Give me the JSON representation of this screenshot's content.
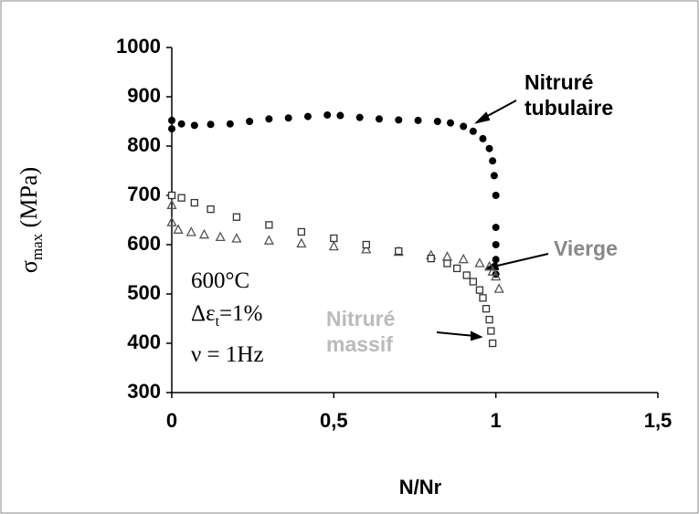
{
  "chart_data": {
    "type": "scatter",
    "xlabel": "N/Nr",
    "ylabel": {
      "symbol": "σ",
      "subscript": "max",
      "unit": " (MPa)"
    },
    "xlim": [
      0,
      1.5
    ],
    "xticks": [
      0,
      {
        "value": 0.5,
        "label": "0,5"
      },
      1,
      {
        "value": 1.5,
        "label": "1,5"
      }
    ],
    "ylim": [
      300,
      1000
    ],
    "yticks": [
      300,
      400,
      500,
      600,
      700,
      800,
      900,
      1000
    ],
    "annotations": {
      "temperature": "600°C",
      "strain_symbol": "Δε",
      "strain_sub": "t",
      "strain_value": "=1%",
      "frequency": "ν = 1Hz"
    },
    "series": [
      {
        "name": "Nitruré tubulaire",
        "color": "#000000",
        "marker": "circle",
        "x": [
          0,
          0,
          0.03,
          0.07,
          0.12,
          0.18,
          0.24,
          0.3,
          0.36,
          0.42,
          0.48,
          0.52,
          0.58,
          0.64,
          0.7,
          0.76,
          0.82,
          0.86,
          0.9,
          0.93,
          0.96,
          0.98,
          0.99,
          0.995,
          1,
          1,
          1,
          1,
          1
        ],
        "values": [
          835,
          852,
          845,
          842,
          844,
          845,
          850,
          855,
          857,
          860,
          863,
          862,
          858,
          855,
          853,
          852,
          850,
          847,
          840,
          830,
          815,
          795,
          770,
          740,
          700,
          635,
          600,
          570,
          540
        ]
      },
      {
        "name": "Vierge",
        "color": "#555555",
        "label_color": "#888888",
        "marker": "triangle",
        "x": [
          0,
          0,
          0.02,
          0.06,
          0.1,
          0.15,
          0.2,
          0.3,
          0.4,
          0.5,
          0.6,
          0.7,
          0.8,
          0.85,
          0.9,
          0.95,
          0.98,
          0.99,
          1,
          1.01
        ],
        "values": [
          680,
          645,
          630,
          625,
          620,
          615,
          612,
          608,
          602,
          596,
          590,
          585,
          578,
          575,
          570,
          562,
          555,
          545,
          535,
          510
        ]
      },
      {
        "name": "Nitruré massif",
        "color": "#333333",
        "label_color": "#bbbbbb",
        "marker": "square",
        "x": [
          0,
          0.03,
          0.07,
          0.12,
          0.2,
          0.3,
          0.4,
          0.5,
          0.6,
          0.7,
          0.8,
          0.85,
          0.88,
          0.91,
          0.93,
          0.95,
          0.96,
          0.97,
          0.98,
          0.985,
          0.99
        ],
        "values": [
          700,
          695,
          685,
          672,
          656,
          640,
          626,
          613,
          600,
          587,
          572,
          562,
          552,
          538,
          525,
          508,
          492,
          470,
          448,
          425,
          400
        ]
      }
    ]
  }
}
